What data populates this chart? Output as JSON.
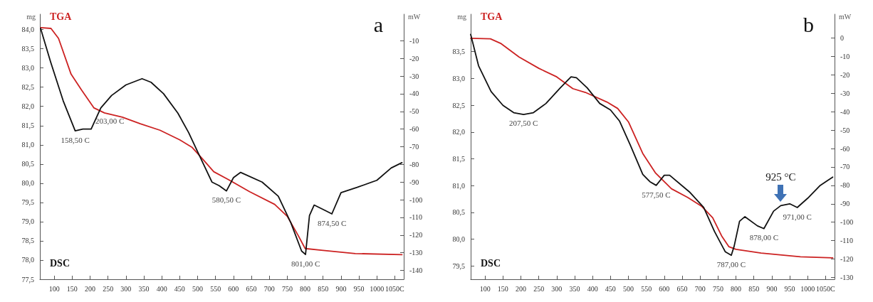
{
  "chart_data": [
    {
      "type": "line",
      "title": "a",
      "ylabel": "mg",
      "y2label": "mW",
      "legend": false,
      "grid": false,
      "marker": "none",
      "xlim": [
        60,
        1075
      ],
      "xticks": [
        100,
        150,
        200,
        250,
        300,
        350,
        400,
        450,
        500,
        550,
        600,
        650,
        700,
        750,
        800,
        850,
        900,
        950,
        1000,
        {
          "value": 1050,
          "label": "1050C"
        }
      ],
      "ylim": [
        77.5,
        84.4
      ],
      "yticks": [
        {
          "value": 77.5,
          "label": "77,5"
        },
        {
          "value": 78,
          "label": "78,0"
        },
        {
          "value": 78.5,
          "label": "78,5"
        },
        {
          "value": 79,
          "label": "79,0"
        },
        {
          "value": 79.5,
          "label": "79,5"
        },
        {
          "value": 80,
          "label": "80,0"
        },
        {
          "value": 80.5,
          "label": "80,5"
        },
        {
          "value": 81,
          "label": "81,0"
        },
        {
          "value": 81.5,
          "label": "81,5"
        },
        {
          "value": 82,
          "label": "82,0"
        },
        {
          "value": 82.5,
          "label": "82,5"
        },
        {
          "value": 83,
          "label": "83,0"
        },
        {
          "value": 83.5,
          "label": "83,5"
        },
        {
          "value": 84,
          "label": "84,0"
        }
      ],
      "y2lim": [
        -145,
        5
      ],
      "y2ticks": [
        -10,
        -20,
        -30,
        -40,
        -50,
        -60,
        -70,
        -80,
        -90,
        -100,
        -110,
        -120,
        -130,
        -140
      ],
      "series": [
        {
          "name": "TGA",
          "color": "#cc2222",
          "x": [
            62,
            91,
            112,
            147,
            176,
            211,
            240,
            290,
            340,
            395,
            450,
            485,
            515,
            545,
            585,
            645,
            715,
            750,
            780,
            800,
            850,
            940,
            1070
          ],
          "values": [
            84.05,
            84.03,
            83.77,
            82.84,
            82.43,
            81.96,
            81.83,
            81.72,
            81.55,
            81.38,
            81.13,
            80.93,
            80.62,
            80.3,
            80.1,
            79.78,
            79.45,
            79.14,
            78.65,
            78.3,
            78.25,
            78.17,
            78.14
          ]
        },
        {
          "name": "DSC",
          "color": "#111111",
          "axis": "y2",
          "x": [
            62,
            90,
            125,
            158.5,
            180,
            203,
            230,
            260,
            300,
            345,
            370,
            405,
            445,
            475,
            505,
            540,
            560,
            580.5,
            600,
            620,
            680,
            725,
            760,
            790,
            801,
            812,
            825,
            855,
            874.5,
            900,
            945,
            1000,
            1040,
            1070
          ],
          "values": [
            -3,
            -22,
            -44,
            -61,
            -60,
            -60,
            -48,
            -41,
            -35,
            -31.5,
            -33.5,
            -40,
            -51,
            -62,
            -75,
            -90,
            -92,
            -95,
            -87.5,
            -84.5,
            -90,
            -98,
            -113,
            -129,
            -131,
            -109,
            -103,
            -106,
            -108,
            -96,
            -93,
            -89,
            -82,
            -79
          ]
        }
      ],
      "annotations": [
        {
          "text": "158,50 C",
          "x": 158.5,
          "y": 81.36
        },
        {
          "text": "203,00 C",
          "x": 203,
          "y": 81.41
        },
        {
          "text": "580,50 C",
          "x": 580.5,
          "y": 79.8
        },
        {
          "text": "801,00 C",
          "x": 801,
          "y": 78.14
        },
        {
          "text": "874,50 C",
          "x": 874.5,
          "y": 79.2
        }
      ]
    },
    {
      "type": "line",
      "title": "b",
      "ylabel": "mg",
      "y2label": "mW",
      "legend": false,
      "grid": false,
      "marker": "none",
      "xlim": [
        60,
        1075
      ],
      "xticks": [
        100,
        150,
        200,
        250,
        300,
        350,
        400,
        450,
        500,
        550,
        600,
        650,
        700,
        750,
        800,
        850,
        900,
        950,
        1000,
        {
          "value": 1050,
          "label": "1050C"
        }
      ],
      "ylim": [
        79.25,
        84.2
      ],
      "yticks": [
        {
          "value": 79.5,
          "label": "79,5"
        },
        {
          "value": 80,
          "label": "80,0"
        },
        {
          "value": 80.5,
          "label": "80,5"
        },
        {
          "value": 81,
          "label": "81,0"
        },
        {
          "value": 81.5,
          "label": "81,5"
        },
        {
          "value": 82,
          "label": "82,0"
        },
        {
          "value": 82.5,
          "label": "82,5"
        },
        {
          "value": 83,
          "label": "83,0"
        },
        {
          "value": 83.5,
          "label": "83,5"
        }
      ],
      "y2lim": [
        -131,
        13
      ],
      "y2ticks": [
        0,
        -10,
        -20,
        -30,
        -40,
        -50,
        -60,
        -70,
        -80,
        -90,
        -100,
        -110,
        -120,
        -130
      ],
      "series": [
        {
          "name": "TGA",
          "color": "#cc2222",
          "x": [
            60,
            115,
            145,
            195,
            250,
            300,
            345,
            380,
            440,
            470,
            500,
            540,
            575,
            620,
            665,
            705,
            735,
            760,
            780,
            800,
            870,
            980,
            1070
          ],
          "values": [
            83.75,
            83.74,
            83.65,
            83.4,
            83.19,
            83.03,
            82.81,
            82.74,
            82.56,
            82.44,
            82.19,
            81.6,
            81.24,
            80.94,
            80.78,
            80.61,
            80.4,
            80.06,
            79.86,
            79.81,
            79.74,
            79.67,
            79.65
          ]
        },
        {
          "name": "DSC",
          "color": "#111111",
          "axis": "y2",
          "x": [
            60,
            82,
            117,
            150,
            180,
            207.5,
            235,
            270,
            310,
            340,
            355,
            385,
            420,
            450,
            475,
            505,
            540,
            560,
            577.5,
            600,
            615,
            670,
            710,
            740,
            770,
            787,
            795,
            810,
            825,
            860,
            878,
            905,
            925,
            950,
            971,
            1000,
            1035,
            1070
          ],
          "values": [
            2,
            -15,
            -29,
            -36.5,
            -40.5,
            -41.5,
            -40.5,
            -35.5,
            -27,
            -21,
            -21.5,
            -27,
            -35.5,
            -39,
            -45,
            -58,
            -74,
            -78,
            -80,
            -74.5,
            -74.5,
            -83.5,
            -92,
            -105,
            -116,
            -118,
            -113,
            -99.5,
            -97,
            -102,
            -103.5,
            -94,
            -91,
            -90,
            -92,
            -87,
            -80,
            -75.5
          ]
        }
      ],
      "annotations": [
        {
          "text": "207,50 C",
          "x": 207.5,
          "y": 82.33
        },
        {
          "text": "577,50 C",
          "x": 577.5,
          "y": 81.0
        },
        {
          "text": "787,00 C",
          "x": 787,
          "y": 79.7
        },
        {
          "text": "878,00 C",
          "x": 878,
          "y": 80.2
        },
        {
          "text": "925 °C",
          "x": 925,
          "y": 80.63
        },
        {
          "text": "971,00 C",
          "x": 971,
          "y": 80.59
        }
      ]
    }
  ]
}
